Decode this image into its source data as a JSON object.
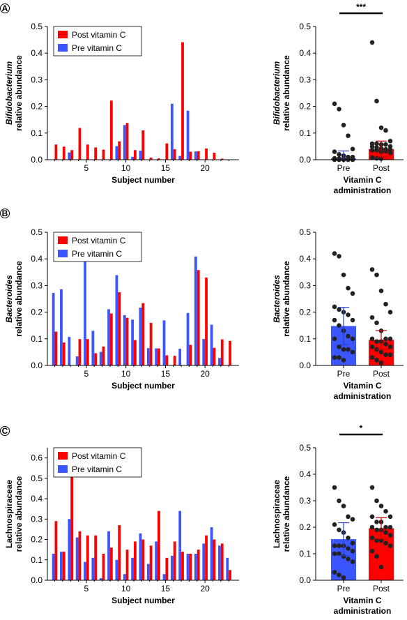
{
  "colors": {
    "post": "#ff0000",
    "pre": "#3b55ff",
    "dot": "#222222",
    "axis": "#000000"
  },
  "chart_data": [
    {
      "panel": "A",
      "type": "bar",
      "ylabel_line1": "Bifidobacterium",
      "ylabel_line2": "relative abundance",
      "xlabel": "Subject number",
      "ylim": [
        0,
        0.5
      ],
      "yticks": [
        "0.0",
        "0.1",
        "0.2",
        "0.3",
        "0.4",
        "0.5"
      ],
      "xticks": [
        "5",
        "10",
        "15",
        "20"
      ],
      "x": [
        1,
        2,
        3,
        4,
        5,
        6,
        7,
        8,
        9,
        10,
        11,
        12,
        13,
        14,
        15,
        16,
        17,
        18,
        19,
        20,
        21,
        22,
        23
      ],
      "series": [
        {
          "name": "Post vitamin C",
          "values": [
            0.057,
            0.049,
            0.036,
            0.119,
            0.057,
            0.046,
            0.038,
            0.222,
            0.069,
            0.138,
            0.036,
            0.11,
            0.008,
            0.005,
            0.061,
            0.039,
            0.441,
            0.03,
            0.032,
            0.042,
            0.026,
            0.004,
            0.0
          ]
        },
        {
          "name": "Pre vitamin C",
          "values": [
            0.0,
            0.0,
            0.027,
            0.0,
            0.0,
            0.0,
            0.0,
            0.0,
            0.051,
            0.13,
            0.011,
            0.034,
            0.0,
            0.0,
            0.0,
            0.21,
            0.014,
            0.184,
            0.031,
            0.0,
            0.0,
            0.0,
            0.0
          ]
        }
      ]
    },
    {
      "panel": "A",
      "type": "scatter",
      "ylabel_line1": "Bifidobacterium",
      "ylabel_line2": "relative abundance",
      "xlabel_line1": "Vitamin C",
      "xlabel_line2": "administration",
      "categories": [
        "Pre",
        "Post"
      ],
      "ylim": [
        0,
        0.5
      ],
      "yticks": [
        "0.0",
        "0.1",
        "0.2",
        "0.3",
        "0.4",
        "0.5"
      ],
      "means": [
        0.005,
        0.04
      ],
      "errors": [
        0.028,
        0.03
      ],
      "significance": "***",
      "points": [
        [
          0.21,
          0.19,
          0.13,
          0.09,
          0.04,
          0.03,
          0.02,
          0.015,
          0.01,
          0.01,
          0.005,
          0.004,
          0.003,
          0.002,
          0.002,
          0.001,
          0.001,
          0.001,
          0.0,
          0.0,
          0.0,
          0.0,
          0.0
        ],
        [
          0.44,
          0.22,
          0.12,
          0.11,
          0.07,
          0.06,
          0.06,
          0.057,
          0.057,
          0.05,
          0.049,
          0.046,
          0.042,
          0.039,
          0.038,
          0.036,
          0.036,
          0.03,
          0.032,
          0.026,
          0.008,
          0.005,
          0.004
        ]
      ]
    },
    {
      "panel": "B",
      "type": "bar",
      "ylabel_line1": "Bacteroides",
      "ylabel_line2": "relative abundance",
      "xlabel": "Subject number",
      "ylim": [
        0,
        0.5
      ],
      "yticks": [
        "0.0",
        "0.1",
        "0.2",
        "0.3",
        "0.4",
        "0.5"
      ],
      "xticks": [
        "5",
        "10",
        "15",
        "20"
      ],
      "x": [
        1,
        2,
        3,
        4,
        5,
        6,
        7,
        8,
        9,
        10,
        11,
        12,
        13,
        14,
        15,
        16,
        17,
        18,
        19,
        20,
        21,
        22,
        23
      ],
      "series": [
        {
          "name": "Post vitamin C",
          "values": [
            0.127,
            0.086,
            0.0,
            0.099,
            0.099,
            0.046,
            0.071,
            0.195,
            0.275,
            0.179,
            0.095,
            0.234,
            0.16,
            0.064,
            0.038,
            0.036,
            0.0,
            0.077,
            0.358,
            0.33,
            0.066,
            0.098,
            0.092
          ]
        },
        {
          "name": "Pre vitamin C",
          "values": [
            0.272,
            0.286,
            0.107,
            0.034,
            0.42,
            0.13,
            0.051,
            0.211,
            0.339,
            0.189,
            0.172,
            0.217,
            0.065,
            0.064,
            0.169,
            0.0,
            0.063,
            0.197,
            0.409,
            0.099,
            0.153,
            0.028,
            0.0
          ]
        }
      ]
    },
    {
      "panel": "B",
      "type": "scatter",
      "ylabel_line1": "Bacteroides",
      "ylabel_line2": "relative abundance",
      "xlabel_line1": "Vitamin C",
      "xlabel_line2": "administration",
      "categories": [
        "Pre",
        "Post"
      ],
      "ylim": [
        0,
        0.5
      ],
      "yticks": [
        "0.0",
        "0.1",
        "0.2",
        "0.3",
        "0.4",
        "0.5"
      ],
      "means": [
        0.148,
        0.096
      ],
      "errors": [
        0.07,
        0.035
      ],
      "significance": "",
      "points": [
        [
          0.42,
          0.41,
          0.34,
          0.29,
          0.27,
          0.22,
          0.21,
          0.2,
          0.19,
          0.17,
          0.17,
          0.15,
          0.13,
          0.11,
          0.1,
          0.1,
          0.07,
          0.06,
          0.06,
          0.05,
          0.03,
          0.03,
          0.02
        ],
        [
          0.36,
          0.34,
          0.28,
          0.23,
          0.2,
          0.18,
          0.16,
          0.13,
          0.1,
          0.1,
          0.1,
          0.09,
          0.09,
          0.08,
          0.07,
          0.07,
          0.06,
          0.05,
          0.04,
          0.04,
          0.03,
          0.02,
          0.01
        ]
      ]
    },
    {
      "panel": "C",
      "type": "bar",
      "ylabel_line1": "Lachnospiraceae",
      "ylabel_line2": "relative abundance",
      "xlabel": "Subject number",
      "ylim": [
        0,
        0.65
      ],
      "yticks": [
        "0.0",
        "0.1",
        "0.2",
        "0.3",
        "0.4",
        "0.5",
        "0.6"
      ],
      "xticks": [
        "5",
        "10",
        "15",
        "20"
      ],
      "x": [
        1,
        2,
        3,
        4,
        5,
        6,
        7,
        8,
        9,
        10,
        11,
        12,
        13,
        14,
        15,
        16,
        17,
        18,
        19,
        20,
        21,
        22,
        23
      ],
      "series": [
        {
          "name": "Post vitamin C",
          "values": [
            0.29,
            0.14,
            0.53,
            0.24,
            0.22,
            0.22,
            0.13,
            0.16,
            0.27,
            0.15,
            0.19,
            0.2,
            0.17,
            0.34,
            0.11,
            0.19,
            0.14,
            0.13,
            0.15,
            0.22,
            0.2,
            0.18,
            0.05
          ]
        },
        {
          "name": "Pre vitamin C",
          "values": [
            0.13,
            0.14,
            0.3,
            0.21,
            0.09,
            0.11,
            0.01,
            0.24,
            0.1,
            0.03,
            0.11,
            0.23,
            0.08,
            0.19,
            0.03,
            0.12,
            0.34,
            0.13,
            0.13,
            0.18,
            0.26,
            0.17,
            0.11
          ]
        }
      ]
    },
    {
      "panel": "C",
      "type": "scatter",
      "ylabel_line1": "Lachnospiraceae",
      "ylabel_line2": "relative abundance",
      "xlabel_line1": "Vitamin C",
      "xlabel_line2": "administration",
      "categories": [
        "Pre",
        "Post"
      ],
      "ylim": [
        0,
        0.5
      ],
      "yticks": [
        "0.0",
        "0.1",
        "0.2",
        "0.3",
        "0.4",
        "0.5"
      ],
      "means": [
        0.155,
        0.196
      ],
      "errors": [
        0.062,
        0.04
      ],
      "significance": "*",
      "points": [
        [
          0.35,
          0.3,
          0.28,
          0.24,
          0.23,
          0.21,
          0.19,
          0.18,
          0.16,
          0.14,
          0.13,
          0.13,
          0.13,
          0.12,
          0.11,
          0.1,
          0.1,
          0.09,
          0.08,
          0.07,
          0.03,
          0.02,
          0.01
        ],
        [
          0.35,
          0.3,
          0.28,
          0.26,
          0.24,
          0.24,
          0.22,
          0.22,
          0.2,
          0.2,
          0.2,
          0.19,
          0.19,
          0.18,
          0.17,
          0.16,
          0.15,
          0.15,
          0.14,
          0.13,
          0.11,
          0.09,
          0.05
        ]
      ]
    }
  ]
}
